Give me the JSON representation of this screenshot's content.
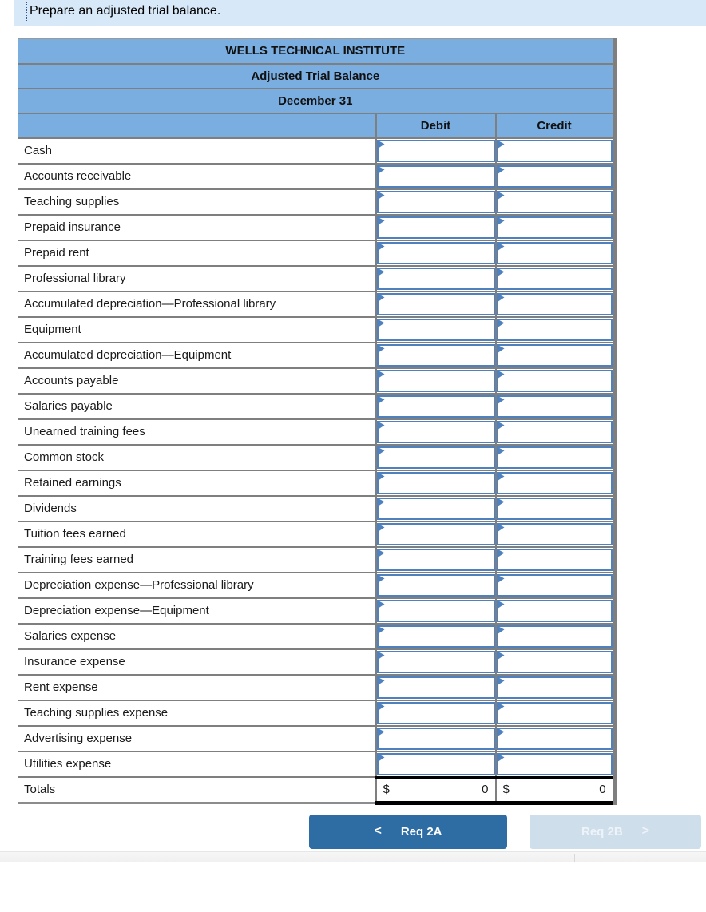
{
  "banner": {
    "title": "Prepare an adjusted trial balance."
  },
  "table": {
    "title_rows": [
      "WELLS TECHNICAL INSTITUTE",
      "Adjusted Trial Balance",
      "December 31"
    ],
    "columns": {
      "debit": "Debit",
      "credit": "Credit"
    },
    "accounts": [
      "Cash",
      "Accounts receivable",
      "Teaching supplies",
      "Prepaid insurance",
      "Prepaid rent",
      "Professional library",
      "Accumulated depreciation—Professional library",
      "Equipment",
      "Accumulated depreciation—Equipment",
      "Accounts payable",
      "Salaries payable",
      "Unearned training fees",
      "Common stock",
      "Retained earnings",
      "Dividends",
      "Tuition fees earned",
      "Training fees earned",
      "Depreciation expense—Professional library",
      "Depreciation expense—Equipment",
      "Salaries expense",
      "Insurance expense",
      "Rent expense",
      "Teaching supplies expense",
      "Advertising expense",
      "Utilities expense"
    ],
    "totals": {
      "label": "Totals",
      "debit_currency": "$",
      "debit_value": "0",
      "credit_currency": "$",
      "credit_value": "0"
    }
  },
  "buttons": {
    "prev": {
      "chevron": "<",
      "label": "Req 2A"
    },
    "next": {
      "label": "Req 2B",
      "chevron": ">"
    }
  },
  "colors": {
    "banner_bg": "#d7e8f8",
    "header_blue": "#7aade0",
    "input_border_blue": "#4e81bd",
    "row_divider_gray": "#7f7f7f",
    "active_button_blue": "#2e6da4",
    "disabled_button_blue": "#cfdeeb"
  }
}
